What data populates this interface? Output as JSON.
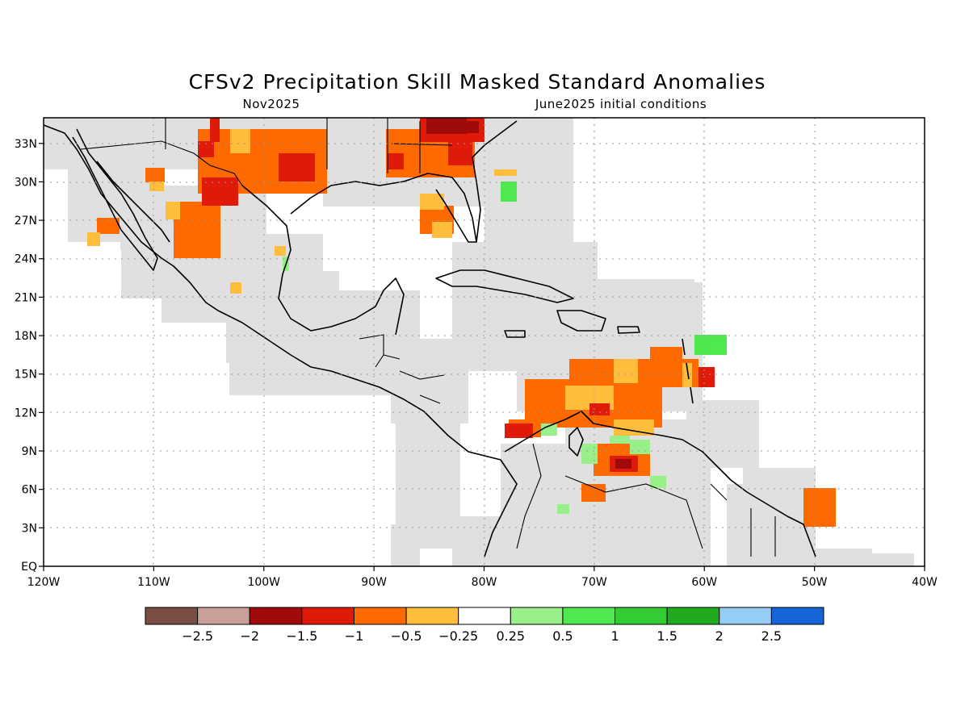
{
  "title": "CFSv2 Precipitation Skill Masked Standard Anomalies",
  "subtitle_left": "Nov2025",
  "subtitle_right": "June2025 initial conditions",
  "map": {
    "lon_range": [
      -120,
      -40
    ],
    "lat_range": [
      0,
      35
    ],
    "x_tick_labels": [
      "120W",
      "110W",
      "100W",
      "90W",
      "80W",
      "70W",
      "60W",
      "50W",
      "40W"
    ],
    "y_tick_labels": [
      "EQ",
      "3N",
      "6N",
      "9N",
      "12N",
      "15N",
      "18N",
      "21N",
      "24N",
      "27N",
      "30N",
      "33N"
    ],
    "grid": "dotted",
    "masked_color": "#e0e0e0",
    "coastline_color": "#000000"
  },
  "legend": {
    "colors": [
      "#7a4d45",
      "#c99f97",
      "#a00a0a",
      "#e01a08",
      "#ff6a00",
      "#ffbd3c",
      "#ffffff",
      "#99f08a",
      "#4fe84f",
      "#33cc33",
      "#1faa1f",
      "#96cdf5",
      "#1565d8"
    ],
    "tick_labels": [
      "-2.5",
      "-2",
      "-1.5",
      "-1",
      "-0.5",
      "-0.25",
      "0.25",
      "0.5",
      "1",
      "1.5",
      "2",
      "2.5"
    ]
  }
}
